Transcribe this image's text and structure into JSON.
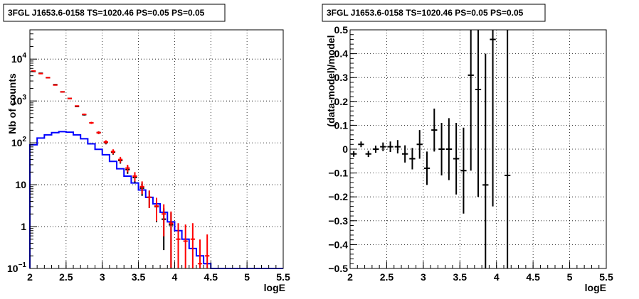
{
  "chart_data": [
    {
      "type": "histogram",
      "title": "3FGL J1653.6-0158 TS=1020.46 PS=0.05 PS=0.05",
      "xlabel": "logE",
      "ylabel": "Nb of counts",
      "xlim": [
        2,
        5.5
      ],
      "ylim": [
        0.1,
        50000
      ],
      "log_y": true,
      "grid": true,
      "x_ticks": [
        "2",
        "2.5",
        "3",
        "3.5",
        "4",
        "4.5",
        "5",
        "5.5"
      ],
      "y_ticks": [
        {
          "value": 0.1,
          "base": "10",
          "exp": "−1"
        },
        {
          "value": 1,
          "base": "1",
          "exp": ""
        },
        {
          "value": 10,
          "base": "10",
          "exp": ""
        },
        {
          "value": 100,
          "base": "10",
          "exp": "2"
        },
        {
          "value": 1000,
          "base": "10",
          "exp": "3"
        },
        {
          "value": 10000,
          "base": "10",
          "exp": "4"
        }
      ],
      "x_bin_edges": [
        2.0,
        2.1,
        2.2,
        2.3,
        2.4,
        2.5,
        2.6,
        2.7,
        2.8,
        2.9,
        3.0,
        3.1,
        3.2,
        3.3,
        3.4,
        3.5,
        3.6,
        3.7,
        3.8,
        3.9,
        4.0,
        4.1,
        4.2,
        4.3,
        4.4,
        4.5,
        4.6,
        4.7,
        4.8,
        4.9,
        5.0,
        5.1,
        5.2,
        5.3,
        5.4,
        5.5
      ],
      "series": [
        {
          "color": "#ff0000",
          "style": "points-with-errors",
          "values": [
            5200,
            4500,
            3600,
            2400,
            1650,
            1150,
            760,
            480,
            300,
            175,
            105,
            62,
            40,
            25,
            16,
            9,
            5,
            3.1,
            2,
            1.2,
            0.5,
            0.45,
            0.5,
            0.13,
            0.2
          ]
        },
        {
          "color": "#000000",
          "style": "points-with-errors",
          "values": [
            5100,
            4600,
            3600,
            2450,
            1650,
            1150,
            740,
            470,
            300,
            175,
            102,
            60,
            38,
            23,
            15,
            8.3,
            5,
            3,
            1.5,
            1.1,
            null,
            null,
            null,
            null,
            null
          ]
        },
        {
          "color": "#0000ff",
          "style": "step",
          "values": [
            90,
            130,
            155,
            175,
            185,
            180,
            155,
            125,
            95,
            70,
            52,
            36,
            24,
            16,
            11,
            7.5,
            5,
            3.5,
            2.2,
            1.3,
            0.8,
            0.5,
            0.3,
            0.2,
            0.13,
            0.1,
            0.1,
            0.1,
            0.1,
            0.1,
            0.1,
            0.1,
            0.1,
            0.1,
            0.1
          ]
        }
      ]
    },
    {
      "type": "scatter",
      "title": "3FGL J1653.6-0158 TS=1020.46 PS=0.05 PS=0.05",
      "xlabel": "logE",
      "ylabel": "(data-model)/model",
      "xlim": [
        2,
        5.5
      ],
      "ylim": [
        -0.5,
        0.5
      ],
      "grid": true,
      "x_ticks": [
        "2",
        "2.5",
        "3",
        "3.5",
        "4",
        "4.5",
        "5",
        "5.5"
      ],
      "y_ticks": [
        "−0.5",
        "−0.4",
        "−0.3",
        "−0.2",
        "−0.1",
        "0",
        "0.1",
        "0.2",
        "0.3",
        "0.4",
        "0.5"
      ],
      "series": [
        {
          "color": "#000000",
          "x": [
            2.05,
            2.15,
            2.25,
            2.35,
            2.45,
            2.55,
            2.65,
            2.75,
            2.85,
            2.95,
            3.05,
            3.15,
            3.25,
            3.35,
            3.45,
            3.55,
            3.65,
            3.75,
            3.85,
            3.95,
            4.15
          ],
          "y": [
            -0.02,
            0.02,
            -0.02,
            0.0,
            0.01,
            0.01,
            0.01,
            -0.02,
            -0.04,
            0.02,
            -0.08,
            0.08,
            0.0,
            0.0,
            -0.04,
            -0.09,
            0.31,
            0.25,
            -0.15,
            0.46,
            -0.11
          ],
          "yerr": [
            0.012,
            0.012,
            0.013,
            0.015,
            0.018,
            0.022,
            0.028,
            0.036,
            0.045,
            0.06,
            0.07,
            0.09,
            0.11,
            0.13,
            0.15,
            0.18,
            0.4,
            0.45,
            0.55,
            0.7,
            0.9
          ]
        }
      ]
    }
  ]
}
